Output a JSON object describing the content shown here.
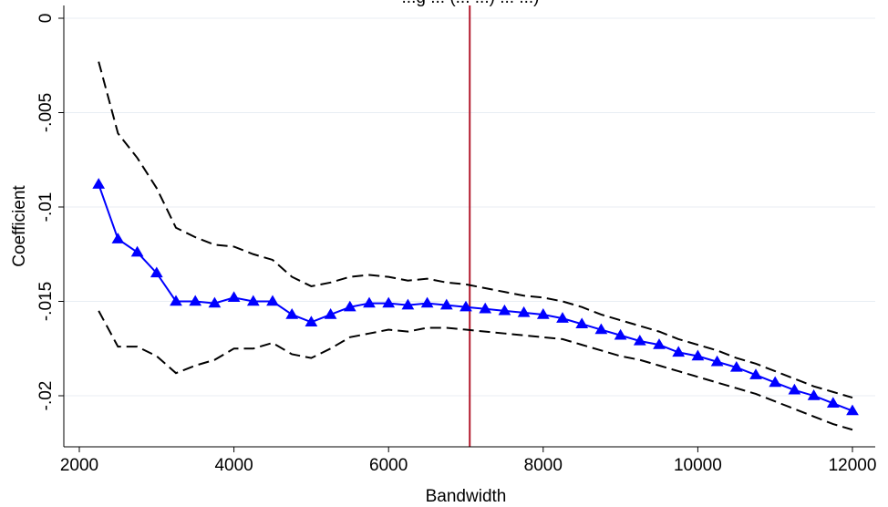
{
  "chart_data": {
    "type": "line",
    "title": "...g ... (... ...) ... ...)",
    "xlabel": "Bandwidth",
    "ylabel": "Coefficient",
    "xlim": [
      2000,
      12000
    ],
    "ylim": [
      -0.0223,
      0.00055
    ],
    "xticks": [
      2000,
      4000,
      6000,
      8000,
      10000,
      12000
    ],
    "xtick_labels": [
      "2000",
      "4000",
      "6000",
      "8000",
      "10000",
      "12000"
    ],
    "yticks": [
      0,
      -0.005,
      -0.01,
      -0.015,
      -0.02
    ],
    "ytick_labels": [
      "0",
      "-.005",
      "-.01",
      "-.015",
      "-.02"
    ],
    "grid": true,
    "reference_line_x": 7050,
    "x": [
      2250,
      2500,
      2750,
      3000,
      3250,
      3500,
      3750,
      4000,
      4250,
      4500,
      4750,
      5000,
      5250,
      5500,
      5750,
      6000,
      6250,
      6500,
      6750,
      7000,
      7250,
      7500,
      7750,
      8000,
      8250,
      8500,
      8750,
      9000,
      9250,
      9500,
      9750,
      10000,
      10250,
      10500,
      10750,
      11000,
      11250,
      11500,
      11750,
      12000
    ],
    "series": [
      {
        "role": "estimate",
        "color": "#0000ff",
        "marker": "triangle",
        "values": [
          -0.0088,
          -0.0117,
          -0.0124,
          -0.0135,
          -0.015,
          -0.015,
          -0.0151,
          -0.0148,
          -0.015,
          -0.015,
          -0.0157,
          -0.0161,
          -0.0157,
          -0.0153,
          -0.0151,
          -0.0151,
          -0.0152,
          -0.0151,
          -0.0152,
          -0.0153,
          -0.0154,
          -0.0155,
          -0.0156,
          -0.0157,
          -0.0159,
          -0.0162,
          -0.0165,
          -0.0168,
          -0.0171,
          -0.0173,
          -0.0177,
          -0.0179,
          -0.0182,
          -0.0185,
          -0.0189,
          -0.0193,
          -0.0197,
          -0.02,
          -0.0204,
          -0.0208
        ]
      },
      {
        "role": "upper-ci",
        "color": "#000000",
        "values": [
          -0.0023,
          -0.0061,
          -0.0074,
          -0.009,
          -0.0111,
          -0.0116,
          -0.012,
          -0.0121,
          -0.0125,
          -0.0128,
          -0.0137,
          -0.0142,
          -0.014,
          -0.0137,
          -0.0136,
          -0.0137,
          -0.0139,
          -0.0138,
          -0.014,
          -0.0141,
          -0.0143,
          -0.0145,
          -0.0147,
          -0.0148,
          -0.015,
          -0.0153,
          -0.0157,
          -0.016,
          -0.0163,
          -0.0166,
          -0.017,
          -0.0173,
          -0.0176,
          -0.018,
          -0.0183,
          -0.0187,
          -0.0191,
          -0.0195,
          -0.0198,
          -0.0201
        ]
      },
      {
        "role": "lower-ci",
        "color": "#000000",
        "values": [
          -0.0155,
          -0.0174,
          -0.0174,
          -0.0179,
          -0.0188,
          -0.0184,
          -0.0181,
          -0.0175,
          -0.0175,
          -0.0172,
          -0.0178,
          -0.018,
          -0.0175,
          -0.0169,
          -0.0167,
          -0.0165,
          -0.0166,
          -0.0164,
          -0.0164,
          -0.0165,
          -0.0166,
          -0.0167,
          -0.0168,
          -0.0169,
          -0.017,
          -0.0173,
          -0.0176,
          -0.0179,
          -0.0181,
          -0.0184,
          -0.0187,
          -0.019,
          -0.0193,
          -0.0196,
          -0.0199,
          -0.0203,
          -0.0207,
          -0.0211,
          -0.0215,
          -0.0218
        ]
      }
    ],
    "colors": {
      "estimate": "#0000ff",
      "ci": "#000000",
      "reference_line": "#b2182b",
      "grid": "#e8eef3"
    }
  }
}
